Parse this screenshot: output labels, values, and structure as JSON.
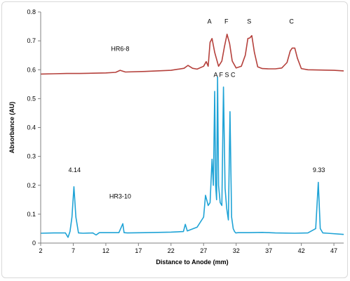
{
  "chart_data": {
    "type": "line",
    "title": "",
    "xlabel": "Distance to Anode (mm)",
    "ylabel": "Absorbance (AU)",
    "xlim": [
      2,
      48.5
    ],
    "ylim": [
      0,
      0.8
    ],
    "x_ticks": [
      2,
      7,
      12,
      17,
      22,
      27,
      32,
      37,
      42,
      47
    ],
    "y_ticks": [
      0,
      0.1,
      0.2,
      0.3,
      0.4,
      0.5,
      0.6,
      0.7,
      0.8
    ],
    "y_tick_labels": [
      "0",
      "0.1",
      "0.2",
      "0.3",
      "0.4",
      "0.5",
      "0.6",
      "0.7",
      "0.8"
    ],
    "grid": false,
    "legend": "none",
    "series": [
      {
        "name": "HR6-8",
        "color": "#b5413c",
        "x": [
          2,
          4,
          6,
          8,
          10,
          12,
          13.5,
          14.2,
          15,
          18,
          22,
          24,
          24.6,
          25.3,
          26,
          27,
          27.4,
          27.7,
          28.0,
          28.3,
          28.7,
          29.3,
          29.8,
          30.2,
          30.6,
          31.0,
          31.4,
          32.0,
          32.8,
          33.4,
          33.8,
          34.1,
          34.4,
          34.8,
          35.3,
          36,
          37,
          38,
          39,
          39.8,
          40.3,
          40.6,
          41.0,
          41.4,
          42,
          43,
          45,
          47,
          48.5
        ],
        "y": [
          0.585,
          0.586,
          0.587,
          0.587,
          0.588,
          0.589,
          0.591,
          0.598,
          0.592,
          0.594,
          0.598,
          0.605,
          0.615,
          0.605,
          0.602,
          0.612,
          0.628,
          0.612,
          0.695,
          0.708,
          0.66,
          0.612,
          0.63,
          0.68,
          0.723,
          0.69,
          0.63,
          0.606,
          0.612,
          0.65,
          0.708,
          0.71,
          0.718,
          0.66,
          0.61,
          0.604,
          0.603,
          0.603,
          0.606,
          0.625,
          0.665,
          0.675,
          0.675,
          0.64,
          0.604,
          0.6,
          0.599,
          0.598,
          0.596
        ]
      },
      {
        "name": "HR3-10",
        "color": "#1fa3d6",
        "x": [
          2,
          4,
          5.8,
          6.2,
          6.5,
          6.8,
          7.1,
          7.4,
          7.8,
          8.5,
          10,
          10.5,
          11,
          14,
          14.6,
          14.8,
          15.3,
          18,
          22,
          23.9,
          24.2,
          24.5,
          26,
          27,
          27.3,
          27.7,
          28.0,
          28.3,
          28.5,
          28.7,
          28.85,
          29.0,
          29.15,
          29.3,
          29.55,
          29.8,
          30.05,
          30.3,
          30.55,
          30.8,
          31.05,
          31.3,
          31.55,
          31.75,
          31.95,
          32.3,
          34,
          36,
          38,
          41,
          43,
          44.2,
          44.6,
          44.9,
          45.3,
          46,
          48.5
        ],
        "y": [
          0.034,
          0.035,
          0.035,
          0.02,
          0.04,
          0.09,
          0.195,
          0.09,
          0.035,
          0.034,
          0.035,
          0.028,
          0.036,
          0.036,
          0.067,
          0.036,
          0.035,
          0.036,
          0.038,
          0.04,
          0.065,
          0.042,
          0.055,
          0.09,
          0.165,
          0.13,
          0.14,
          0.29,
          0.2,
          0.525,
          0.2,
          0.15,
          0.575,
          0.2,
          0.14,
          0.13,
          0.54,
          0.19,
          0.12,
          0.08,
          0.455,
          0.09,
          0.05,
          0.04,
          0.035,
          0.036,
          0.036,
          0.037,
          0.035,
          0.034,
          0.035,
          0.05,
          0.21,
          0.05,
          0.035,
          0.034,
          0.03
        ]
      }
    ],
    "annotations": [
      {
        "text": "A",
        "x": 27.9,
        "y": 0.76
      },
      {
        "text": "F",
        "x": 30.5,
        "y": 0.76
      },
      {
        "text": "S",
        "x": 34.0,
        "y": 0.76
      },
      {
        "text": "C",
        "x": 40.5,
        "y": 0.76
      },
      {
        "text": "HR6-8",
        "x": 14.2,
        "y": 0.665
      },
      {
        "text": "A F S C",
        "x": 30.2,
        "y": 0.575
      },
      {
        "text": "4.14",
        "x": 7.2,
        "y": 0.245
      },
      {
        "text": "9.33",
        "x": 44.7,
        "y": 0.245
      },
      {
        "text": "HR3-10",
        "x": 14.2,
        "y": 0.155
      }
    ]
  }
}
